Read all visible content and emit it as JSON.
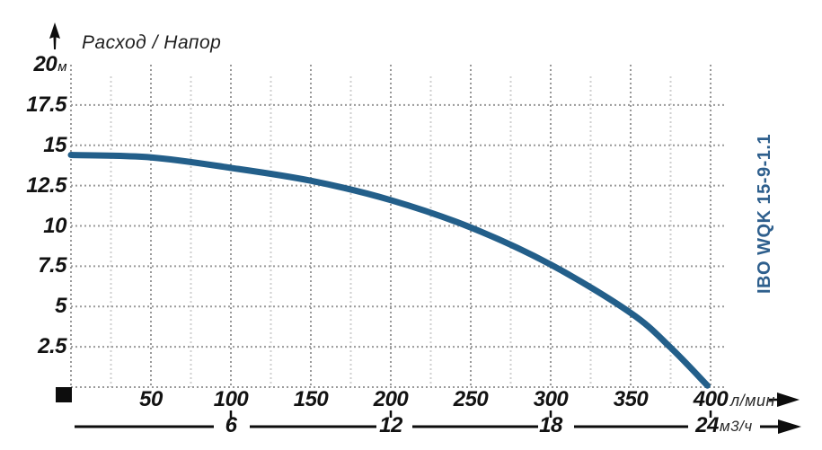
{
  "header": {
    "title": "Расход / Напор"
  },
  "product_label": "IBO WQK 15-9-1.1",
  "colors": {
    "curve": "#235f8a",
    "product_label_blue": "#2e5f8d",
    "grid_major": "#9a9a9a",
    "grid_minor": "#cfcfcf",
    "axis_black": "#0d0d0d",
    "text": "#121212"
  },
  "chart_data": {
    "type": "line",
    "title": "Расход / Напор",
    "grid": "dotted",
    "legend_position": "none",
    "series": [
      {
        "name": "IBO WQK 15-9-1.1",
        "points": [
          [
            0,
            14.4
          ],
          [
            50,
            14.25
          ],
          [
            100,
            13.6
          ],
          [
            150,
            12.8
          ],
          [
            200,
            11.6
          ],
          [
            250,
            9.9
          ],
          [
            300,
            7.6
          ],
          [
            350,
            4.6
          ],
          [
            375,
            2.45
          ],
          [
            398,
            0.1
          ]
        ]
      }
    ],
    "x_axis_primary": {
      "label": "л/мин",
      "ticks": [
        50,
        100,
        150,
        200,
        250,
        300,
        350,
        400
      ],
      "range": [
        0,
        400
      ],
      "minor_step": 25
    },
    "x_axis_secondary": {
      "label": "м3/ч",
      "ticks": [
        6,
        12,
        18,
        24
      ],
      "lmin_per_m3h": 16.6667
    },
    "y_axis": {
      "unit": "м",
      "unit_on_tick": 20,
      "ticks": [
        20,
        17.5,
        15,
        12.5,
        10,
        7.5,
        5,
        2.5
      ],
      "range": [
        0,
        20
      ],
      "step": 2.5
    }
  }
}
